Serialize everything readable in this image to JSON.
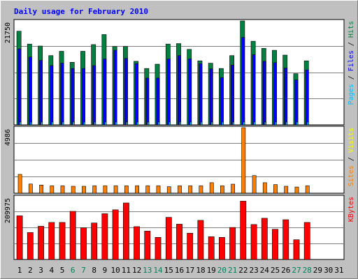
{
  "chart_data": {
    "type": "bar",
    "title": "Daily usage for February 2010",
    "categories": [
      "1",
      "2",
      "3",
      "4",
      "5",
      "6",
      "7",
      "8",
      "9",
      "10",
      "11",
      "12",
      "13",
      "14",
      "15",
      "16",
      "17",
      "18",
      "19",
      "20",
      "21",
      "22",
      "23",
      "24",
      "25",
      "26",
      "27",
      "28",
      "29",
      "30",
      "31"
    ],
    "weekend_days": [
      6,
      7,
      13,
      14,
      20,
      21,
      27,
      28
    ],
    "grid": true,
    "panels": [
      {
        "id": "top",
        "max_label": "21750",
        "ylim": [
          0,
          21750
        ],
        "series": [
          {
            "name": "Hits",
            "color": "#008040",
            "values": [
              19600,
              16900,
              16500,
              14500,
              15400,
              13100,
              15400,
              16800,
              18900,
              16400,
              16400,
              13300,
              11800,
              12700,
              16900,
              17000,
              15800,
              13400,
              12900,
              11800,
              14500,
              21750,
              17500,
              16000,
              15600,
              14600,
              10700,
              13400,
              0,
              0,
              0
            ]
          },
          {
            "name": "Files",
            "color": "#0000ff",
            "values": [
              15900,
              14200,
              13500,
              12400,
              12900,
              11800,
              11800,
              12400,
              13800,
              15600,
              13900,
              12800,
              9800,
              9800,
              13800,
              14500,
              13800,
              12800,
              11700,
              9900,
              12500,
              18300,
              14700,
              13300,
              13000,
              11900,
              9400,
              11500,
              0,
              0,
              0
            ]
          },
          {
            "name": "Pages",
            "color": "#00c0ff",
            "values": [
              600,
              600,
              600,
              600,
              600,
              600,
              600,
              600,
              600,
              600,
              600,
              600,
              600,
              600,
              600,
              600,
              600,
              600,
              600,
              600,
              600,
              600,
              600,
              600,
              600,
              600,
              600,
              600,
              0,
              0,
              0
            ]
          }
        ],
        "axis_label_parts": [
          {
            "text": "Pages",
            "color": "#00c0ff"
          },
          {
            "text": " / ",
            "color": "#000000"
          },
          {
            "text": "Files",
            "color": "#0000ff"
          },
          {
            "text": " / ",
            "color": "#000000"
          },
          {
            "text": "Hits",
            "color": "#008040"
          }
        ]
      },
      {
        "id": "mid",
        "max_label": "4986",
        "ylim": [
          0,
          4986
        ],
        "series": [
          {
            "name": "Visits",
            "color": "#ffff00",
            "values": [
              0,
              0,
              0,
              0,
              0,
              0,
              0,
              0,
              0,
              0,
              0,
              0,
              0,
              0,
              0,
              0,
              0,
              0,
              0,
              0,
              0,
              0,
              0,
              0,
              0,
              0,
              0,
              0,
              0,
              0,
              0
            ]
          },
          {
            "name": "Sites",
            "color": "#ff8000",
            "values": [
              1430,
              700,
              620,
              560,
              560,
              530,
              530,
              560,
              560,
              560,
              560,
              560,
              560,
              560,
              500,
              560,
              560,
              560,
              800,
              560,
              690,
              4986,
              1340,
              800,
              660,
              530,
              470,
              560,
              0,
              0,
              0
            ]
          }
        ],
        "axis_label_parts": [
          {
            "text": "Sites",
            "color": "#ff8000"
          },
          {
            "text": " / ",
            "color": "#000000"
          },
          {
            "text": "Visits",
            "color": "#ffff00"
          }
        ]
      },
      {
        "id": "bot",
        "max_label": "209975",
        "ylim": [
          0,
          209975
        ],
        "series": [
          {
            "name": "KBytes",
            "color": "#ff0000",
            "values": [
              146000,
              90000,
              111000,
              124000,
              124000,
              161000,
              106000,
              122000,
              153000,
              166000,
              189000,
              110000,
              95000,
              74000,
              141000,
              118000,
              88000,
              131000,
              76000,
              74000,
              107000,
              195000,
              117000,
              138000,
              101000,
              133000,
              66000,
              124000,
              0,
              0,
              0
            ]
          }
        ],
        "axis_label_parts": [
          {
            "text": "KBytes",
            "color": "#ff0000"
          }
        ]
      }
    ]
  }
}
